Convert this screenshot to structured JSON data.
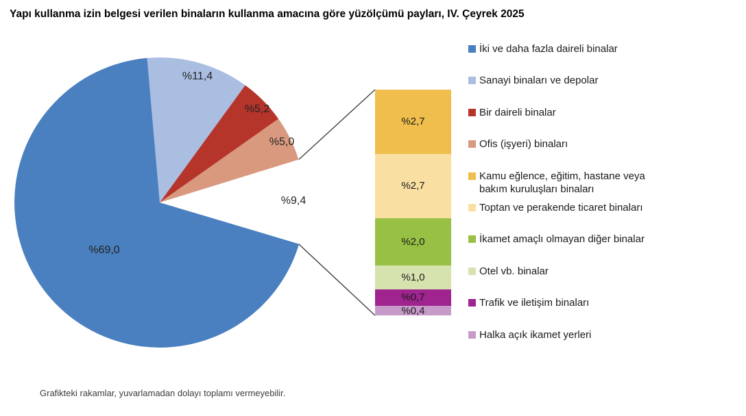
{
  "title": "Yapı kullanma izin belgesi verilen binaların kullanma amacına göre yüzölçümü payları, IV. Çeyrek 2025",
  "footnote": "Grafikteki rakamlar, yuvarlamadan dolayı toplamı vermeyebilir.",
  "chart_data": {
    "type": "pie",
    "title": "Yapı kullanma izin belgesi verilen binaların kullanma amacına göre yüzölçümü payları, IV. Çeyrek 2025",
    "unit": "percent",
    "pie": {
      "slices": [
        {
          "label": "İki ve daha fazla daireli binalar",
          "value": 69.0,
          "display": "%69,0",
          "color": "#4A80BF"
        },
        {
          "label": "Sanayi binaları ve depolar",
          "value": 11.4,
          "display": "%11,4",
          "color": "#AABEE2"
        },
        {
          "label": "Bir daireli binalar",
          "value": 5.2,
          "display": "%5,2",
          "color": "#B5352B"
        },
        {
          "label": "Ofis (işyeri) binaları",
          "value": 5.0,
          "display": "%5,0",
          "color": "#D9997F"
        },
        {
          "label": "",
          "value": 9.4,
          "display": "%9,4",
          "color": null,
          "exploded_to_bar": true
        }
      ]
    },
    "breakout_bar": {
      "total": 9.5,
      "segments": [
        {
          "label": "Kamu eğlence, eğitim, hastane veya bakım kuruluşları binaları",
          "value": 2.7,
          "display": "%2,7",
          "color": "#EFBE4C"
        },
        {
          "label": "Toptan ve perakende ticaret binaları",
          "value": 2.7,
          "display": "%2,7",
          "color": "#F9E0A2"
        },
        {
          "label": "İkamet amaçlı olmayan diğer binalar",
          "value": 2.0,
          "display": "%2,0",
          "color": "#97C044"
        },
        {
          "label": "Otel vb. binalar",
          "value": 1.0,
          "display": "%1,0",
          "color": "#D6E3AF"
        },
        {
          "label": "Trafik ve iletişim binaları",
          "value": 0.7,
          "display": "%0,7",
          "color": "#9F2490"
        },
        {
          "label": "Halka açık ikamet yerleri",
          "value": 0.4,
          "display": "%0,4",
          "color": "#C79BC9"
        }
      ]
    }
  },
  "legend": {
    "items": [
      {
        "label": "İki ve daha fazla daireli binalar",
        "color": "#4A80BF"
      },
      {
        "label": "Sanayi binaları ve depolar",
        "color": "#AABEE2"
      },
      {
        "label": "Bir daireli binalar",
        "color": "#B5352B"
      },
      {
        "label": "Ofis (işyeri) binaları",
        "color": "#D9997F"
      },
      {
        "label": "Kamu eğlence, eğitim, hastane veya bakım kuruluşları binaları",
        "color": "#EFBE4C"
      },
      {
        "label": "Toptan ve perakende ticaret binaları",
        "color": "#F9E0A2"
      },
      {
        "label": "İkamet amaçlı olmayan diğer binalar",
        "color": "#97C044"
      },
      {
        "label": "Otel vb. binalar",
        "color": "#D6E3AF"
      },
      {
        "label": "Trafik ve iletişim binaları",
        "color": "#9F2490"
      },
      {
        "label": "Halka açık ikamet yerleri",
        "color": "#C79BC9"
      }
    ]
  }
}
